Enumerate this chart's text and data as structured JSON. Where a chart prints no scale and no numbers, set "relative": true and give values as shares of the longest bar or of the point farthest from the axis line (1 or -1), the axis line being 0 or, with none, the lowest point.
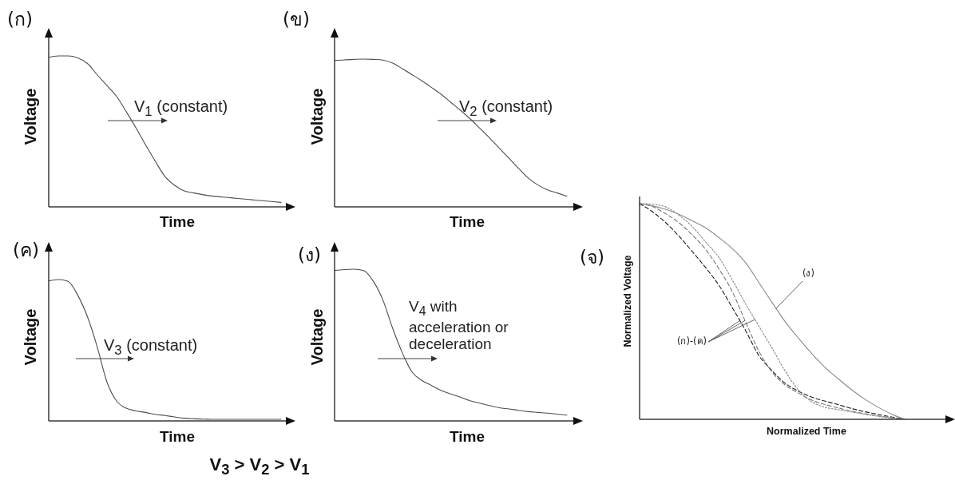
{
  "chart_data": [
    {
      "type": "line",
      "title": "(ก)",
      "xlabel": "Time",
      "ylabel": "Voltage",
      "relative": true,
      "color": "#4d4d4d",
      "categories": [
        null,
        null,
        null,
        null,
        null,
        null,
        null,
        null,
        null,
        null,
        null,
        null,
        null,
        null,
        null,
        null,
        null,
        null,
        null,
        null,
        null,
        null,
        null,
        null,
        null
      ],
      "values": [
        0.99,
        1.0,
        1.0,
        0.987,
        0.95,
        0.876,
        0.805,
        0.733,
        0.632,
        0.525,
        0.411,
        0.303,
        0.202,
        0.143,
        0.106,
        0.092,
        0.08,
        0.071,
        0.065,
        0.059,
        0.053,
        0.047,
        0.041,
        0.036,
        0.03
      ],
      "annotations": [
        "V$_{1}$ (constant)"
      ]
    },
    {
      "type": "line",
      "title": "(ข)",
      "xlabel": "Time",
      "ylabel": "Voltage",
      "relative": true,
      "color": "#4d4d4d",
      "categories": [
        null,
        null,
        null,
        null,
        null,
        null,
        null,
        null,
        null,
        null,
        null,
        null,
        null,
        null,
        null,
        null,
        null,
        null,
        null,
        null,
        null,
        null,
        null,
        null,
        null
      ],
      "values": [
        0.99,
        0.995,
        0.998,
        1.0,
        0.998,
        0.993,
        0.973,
        0.935,
        0.895,
        0.854,
        0.809,
        0.762,
        0.708,
        0.654,
        0.596,
        0.532,
        0.467,
        0.398,
        0.33,
        0.261,
        0.195,
        0.148,
        0.115,
        0.094,
        0.072
      ],
      "annotations": [
        "V$_{2}$ (constant)"
      ]
    },
    {
      "type": "line",
      "title": "(ค)",
      "xlabel": "Time",
      "ylabel": "Voltage",
      "relative": true,
      "color": "#4d4d4d",
      "categories": [
        null,
        null,
        null,
        null,
        null,
        null,
        null,
        null,
        null,
        null,
        null,
        null,
        null,
        null,
        null,
        null,
        null,
        null,
        null,
        null,
        null,
        null,
        null,
        null,
        null
      ],
      "values": [
        0.99,
        1.0,
        0.987,
        0.889,
        0.737,
        0.526,
        0.278,
        0.141,
        0.09,
        0.071,
        0.06,
        0.047,
        0.038,
        0.028,
        0.019,
        0.015,
        0.013,
        0.011,
        0.011,
        0.011,
        0.011,
        0.011,
        0.011,
        0.011,
        0.011
      ],
      "annotations": [
        "V$_{3}$ (constant)"
      ]
    },
    {
      "type": "line",
      "title": "(ง)",
      "xlabel": "Time",
      "ylabel": "Voltage",
      "relative": true,
      "color": "#4d4d4d",
      "categories": [
        null,
        null,
        null,
        null,
        null,
        null,
        null,
        null,
        null,
        null,
        null,
        null,
        null,
        null,
        null,
        null,
        null,
        null,
        null,
        null,
        null,
        null,
        null,
        null,
        null
      ],
      "values": [
        0.991,
        0.997,
        1.0,
        0.99,
        0.92,
        0.795,
        0.61,
        0.448,
        0.322,
        0.267,
        0.234,
        0.201,
        0.178,
        0.156,
        0.133,
        0.117,
        0.101,
        0.087,
        0.079,
        0.07,
        0.061,
        0.056,
        0.051,
        0.045,
        0.038
      ],
      "annotations": [
        "V$_{4}$ with acceleration or deceleration"
      ]
    },
    {
      "type": "line",
      "title": "(จ)",
      "xlabel": "Normalized Time",
      "ylabel": "Normalized Voltage",
      "relative": true,
      "categories": [
        null,
        null,
        null,
        null,
        null,
        null,
        null,
        null,
        null,
        null,
        null,
        null,
        null,
        null,
        null,
        null,
        null,
        null,
        null,
        null,
        null
      ],
      "series": [
        {
          "color": "#8a8a8a",
          "line_style": "solid",
          "values": [
            1.0,
            0.989,
            0.973,
            0.95,
            0.919,
            0.887,
            0.842,
            0.791,
            0.726,
            0.634,
            0.541,
            0.451,
            0.375,
            0.304,
            0.24,
            0.187,
            0.137,
            0.093,
            0.056,
            0.024,
            0
          ]
        },
        {
          "color": "#1e1e1e",
          "line_style": "dashed",
          "values": [
            1.0,
            0.961,
            0.91,
            0.847,
            0.776,
            0.702,
            0.62,
            0.517,
            0.411,
            0.296,
            0.225,
            0.166,
            0.13,
            0.103,
            0.084,
            0.068,
            0.05,
            0.035,
            0.023,
            0.011,
            0
          ]
        },
        {
          "color": "#777777",
          "line_style": "dashed",
          "values": [
            1.0,
            0.986,
            0.952,
            0.91,
            0.853,
            0.786,
            0.696,
            0.591,
            0.451,
            0.316,
            0.219,
            0.158,
            0.121,
            0.089,
            0.068,
            0.053,
            0.037,
            0.026,
            0.016,
            0.008,
            0
          ]
        },
        {
          "color": "#8c8c8c",
          "line_style": "dotted",
          "values": [
            1.0,
            0.997,
            0.984,
            0.945,
            0.892,
            0.821,
            0.749,
            0.646,
            0.535,
            0.432,
            0.329,
            0.222,
            0.135,
            0.081,
            0.056,
            0.045,
            0.034,
            0.023,
            0.014,
            0.006,
            0
          ]
        }
      ],
      "annotations": [
        "(ง)",
        "(ก)-(ค)"
      ]
    },
    {
      "type": "other",
      "annotations": [
        "V$_{3}$ > V$_{2}$ > V$_{1}$"
      ]
    }
  ]
}
